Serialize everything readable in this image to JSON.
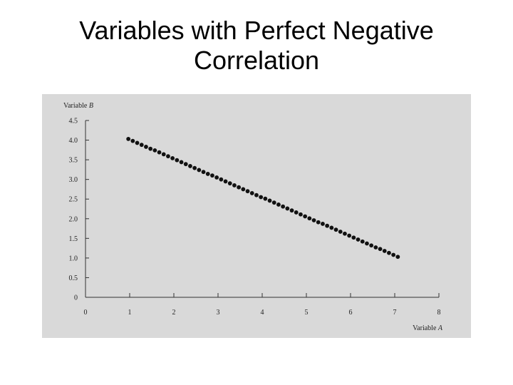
{
  "slide": {
    "title_line1": "Variables with Perfect Negative",
    "title_line2": "Correlation"
  },
  "colors": {
    "panel_bg": "#d9d9d9",
    "axis": "#333333",
    "marker": "#111111"
  },
  "chart_data": {
    "type": "scatter",
    "title": "Variables with Perfect Negative Correlation",
    "xlabel_prefix": "Variable ",
    "xlabel_var": "A",
    "ylabel_prefix": "Variable ",
    "ylabel_var": "B",
    "xlim": [
      0,
      8
    ],
    "ylim": [
      0,
      4.5
    ],
    "x_ticks": [
      0,
      1,
      2,
      3,
      4,
      5,
      6,
      7,
      8
    ],
    "x_tick_labels": [
      "0",
      "1",
      "2",
      "3",
      "4",
      "5",
      "6",
      "7",
      "8"
    ],
    "y_ticks": [
      0,
      0.5,
      1.0,
      1.5,
      2.0,
      2.5,
      3.0,
      3.5,
      4.0,
      4.5
    ],
    "y_tick_labels": [
      "0",
      "0.5",
      "1.0",
      "1.5",
      "2.0",
      "2.5",
      "3.0",
      "3.5",
      "4.0",
      "4.5"
    ],
    "grid": false,
    "series": [
      {
        "x": [
          0.97,
          1.07,
          1.17,
          1.27,
          1.37,
          1.47,
          1.57,
          1.67,
          1.77,
          1.87,
          1.97,
          2.07,
          2.17,
          2.27,
          2.37,
          2.47,
          2.57,
          2.67,
          2.77,
          2.87,
          2.97,
          3.07,
          3.17,
          3.27,
          3.37,
          3.47,
          3.57,
          3.67,
          3.77,
          3.87,
          3.97,
          4.07,
          4.17,
          4.27,
          4.37,
          4.47,
          4.57,
          4.67,
          4.77,
          4.87,
          4.97,
          5.07,
          5.17,
          5.27,
          5.37,
          5.47,
          5.57,
          5.67,
          5.77,
          5.87,
          5.97,
          6.07,
          6.17,
          6.27,
          6.37,
          6.47,
          6.57,
          6.67,
          6.77,
          6.87,
          6.97,
          7.07
        ],
        "y": [
          4.03,
          3.98,
          3.93,
          3.88,
          3.83,
          3.78,
          3.74,
          3.69,
          3.64,
          3.59,
          3.54,
          3.49,
          3.44,
          3.39,
          3.34,
          3.29,
          3.24,
          3.19,
          3.14,
          3.1,
          3.05,
          3.0,
          2.95,
          2.9,
          2.85,
          2.8,
          2.75,
          2.7,
          2.65,
          2.6,
          2.55,
          2.51,
          2.46,
          2.41,
          2.36,
          2.31,
          2.26,
          2.21,
          2.16,
          2.11,
          2.06,
          2.01,
          1.96,
          1.91,
          1.87,
          1.82,
          1.77,
          1.72,
          1.67,
          1.62,
          1.57,
          1.52,
          1.47,
          1.42,
          1.37,
          1.32,
          1.27,
          1.23,
          1.18,
          1.13,
          1.08,
          1.03
        ]
      }
    ]
  }
}
